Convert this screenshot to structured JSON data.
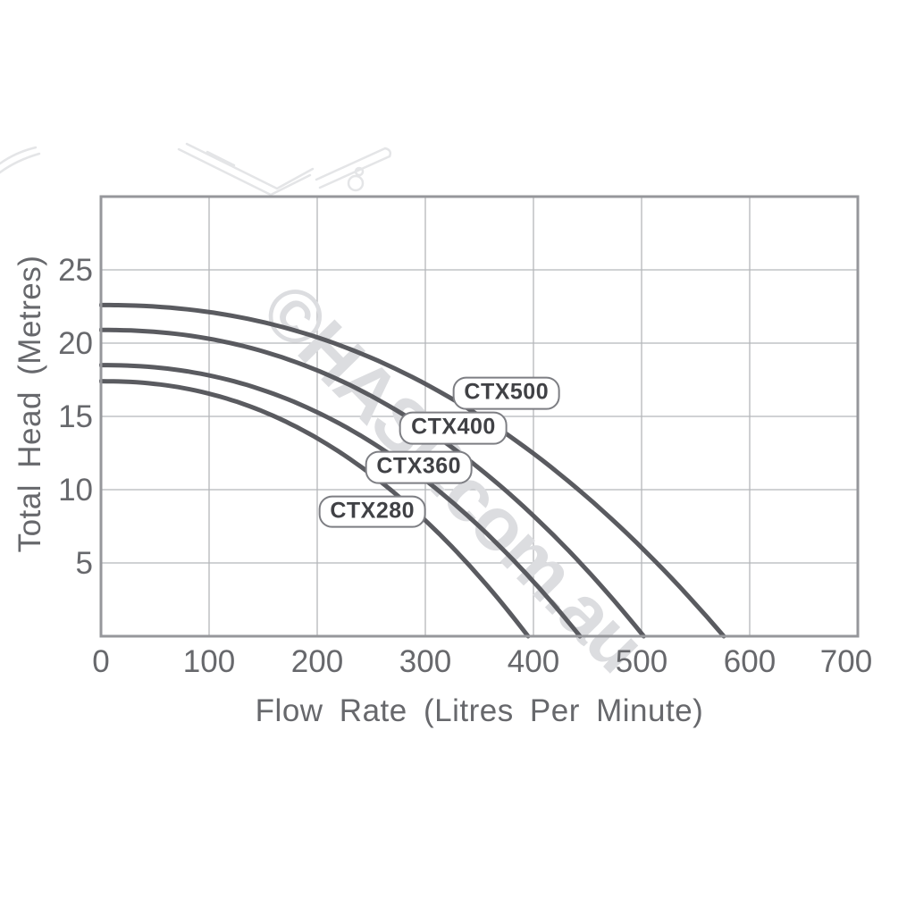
{
  "watermark": "©HASP.com.au",
  "chart_data": {
    "type": "line",
    "title": "",
    "xlabel": "Flow Rate (Litres Per Minute)",
    "ylabel": "Total Head (Metres)",
    "xlim": [
      0,
      700
    ],
    "ylim": [
      0,
      30
    ],
    "x_ticks": [
      0,
      100,
      200,
      300,
      400,
      500,
      600,
      700
    ],
    "y_ticks": [
      5,
      10,
      15,
      20,
      25
    ],
    "grid": true,
    "legend_position": "inline-curve-labels",
    "curve_exponent": 2.2,
    "series": [
      {
        "name": "CTX280",
        "shutoff_head_m": 17.4,
        "max_flow_lpm": 395,
        "points": [
          [
            0,
            17.4
          ],
          [
            100,
            16.6
          ],
          [
            200,
            13.5
          ],
          [
            300,
            7.9
          ],
          [
            395,
            0
          ]
        ],
        "label_anchor": {
          "flow": 251,
          "head": 8.5
        }
      },
      {
        "name": "CTX360",
        "shutoff_head_m": 18.5,
        "max_flow_lpm": 443,
        "points": [
          [
            0,
            18.5
          ],
          [
            100,
            17.8
          ],
          [
            200,
            15.3
          ],
          [
            300,
            10.7
          ],
          [
            400,
            3.7
          ],
          [
            443,
            0
          ]
        ],
        "label_anchor": {
          "flow": 294,
          "head": 11.5
        }
      },
      {
        "name": "CTX400",
        "shutoff_head_m": 20.9,
        "max_flow_lpm": 502,
        "points": [
          [
            0,
            20.9
          ],
          [
            100,
            20.3
          ],
          [
            200,
            18.1
          ],
          [
            300,
            14.2
          ],
          [
            400,
            8.2
          ],
          [
            502,
            0
          ]
        ],
        "label_anchor": {
          "flow": 326,
          "head": 14.2
        }
      },
      {
        "name": "CTX500",
        "shutoff_head_m": 22.6,
        "max_flow_lpm": 576,
        "points": [
          [
            0,
            22.6
          ],
          [
            100,
            22.1
          ],
          [
            200,
            20.4
          ],
          [
            300,
            17.2
          ],
          [
            400,
            12.5
          ],
          [
            500,
            6.0
          ],
          [
            576,
            0
          ]
        ],
        "label_anchor": {
          "flow": 375,
          "head": 16.6
        }
      }
    ],
    "colors": {
      "curve": "#515257",
      "grid": "#b5b6ba",
      "plot_border": "#96979b",
      "tick_text": "#67686c",
      "axis_text": "#67686c",
      "watermark": "#dcdde0",
      "sketch": "#e4e5e7",
      "pill_border": "#7d7e83",
      "pill_text": "#404145",
      "background": "#ffffff"
    }
  }
}
